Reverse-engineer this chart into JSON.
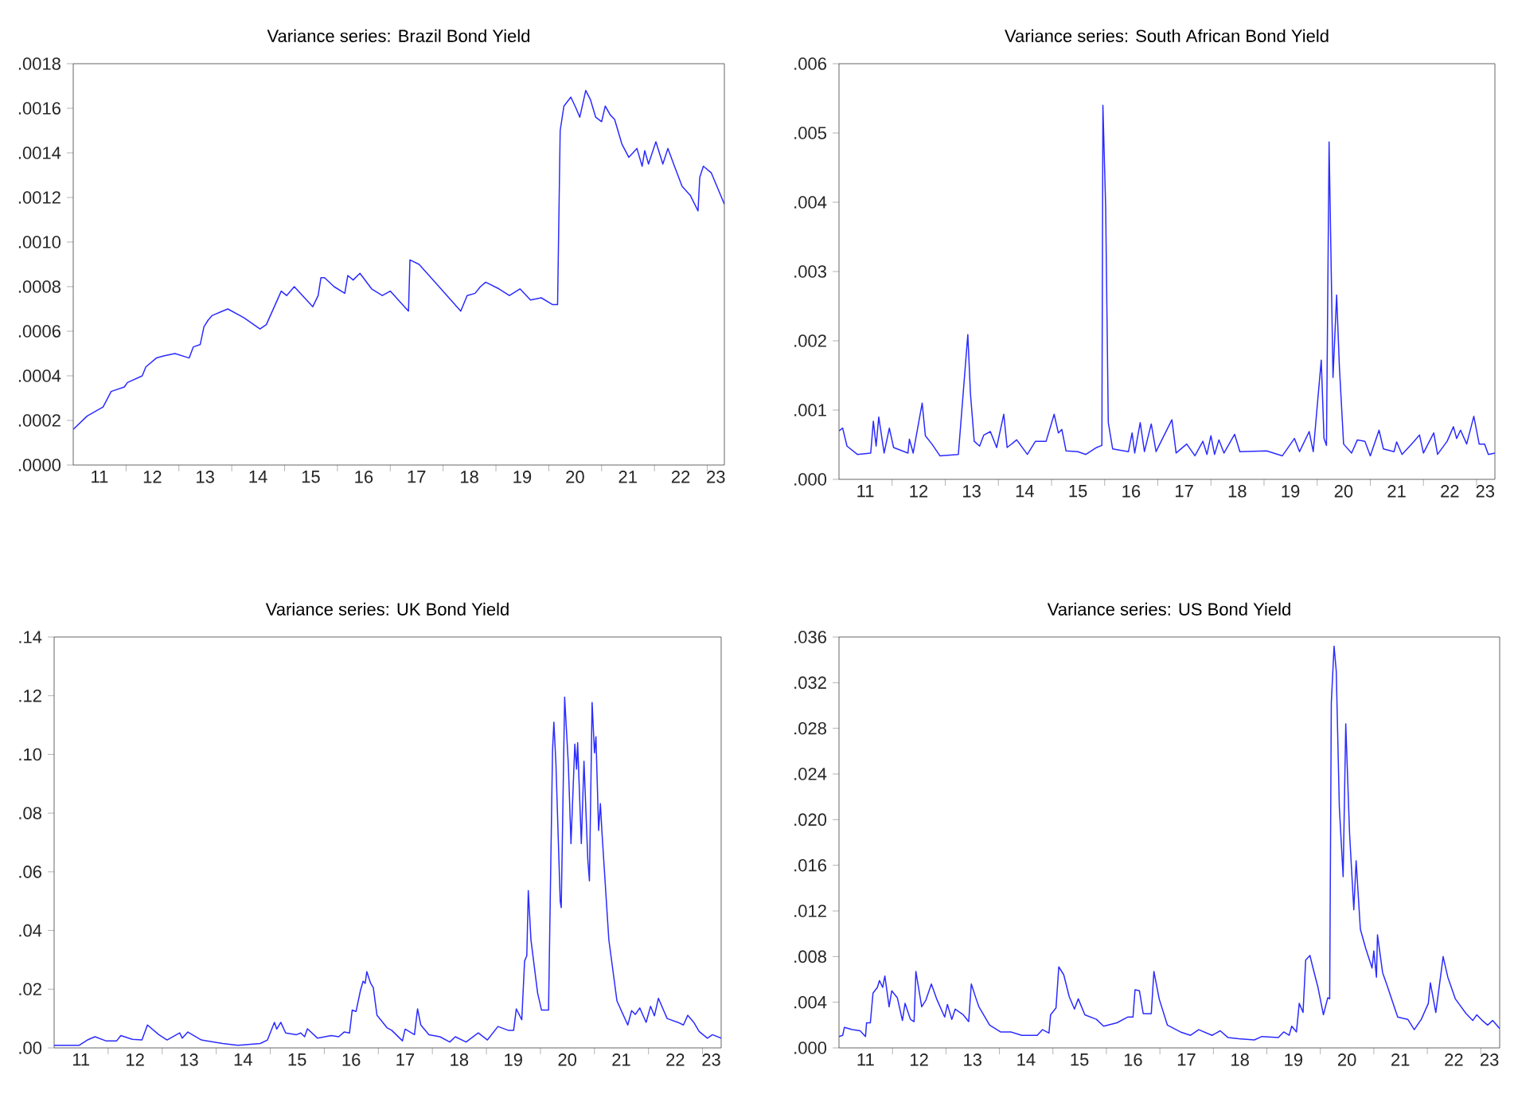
{
  "chart_data": [
    {
      "type": "line",
      "title": "Variance series: Brazil Bond Yield",
      "xlim": [
        "2011-01-01",
        "2023-04-29"
      ],
      "ylim": [
        0,
        0.0018
      ],
      "xticks": [
        {
          "value": "2011-07-01",
          "label": "11"
        },
        {
          "value": "2012-01-01",
          "label": null
        },
        {
          "value": "2012-07-01",
          "label": "12"
        },
        {
          "value": "2013-01-01",
          "label": null
        },
        {
          "value": "2013-07-01",
          "label": "13"
        },
        {
          "value": "2014-01-01",
          "label": null
        },
        {
          "value": "2014-07-01",
          "label": "14"
        },
        {
          "value": "2015-01-01",
          "label": null
        },
        {
          "value": "2015-07-01",
          "label": "15"
        },
        {
          "value": "2016-01-01",
          "label": null
        },
        {
          "value": "2016-07-01",
          "label": "16"
        },
        {
          "value": "2017-01-01",
          "label": null
        },
        {
          "value": "2017-07-01",
          "label": "17"
        },
        {
          "value": "2018-01-01",
          "label": null
        },
        {
          "value": "2018-07-01",
          "label": "18"
        },
        {
          "value": "2019-01-01",
          "label": null
        },
        {
          "value": "2019-07-01",
          "label": "19"
        },
        {
          "value": "2020-01-01",
          "label": null
        },
        {
          "value": "2020-07-01",
          "label": "20"
        },
        {
          "value": "2021-01-01",
          "label": null
        },
        {
          "value": "2021-07-01",
          "label": "21"
        },
        {
          "value": "2022-01-01",
          "label": null
        },
        {
          "value": "2022-07-01",
          "label": "22"
        },
        {
          "value": "2023-01-01",
          "label": null
        },
        {
          "value": "2023-03-01",
          "label": "23"
        }
      ],
      "yticks": [
        {
          "value": 0,
          "label": ".0000"
        },
        {
          "value": 0.0002,
          "label": ".0002"
        },
        {
          "value": 0.0004,
          "label": ".0004"
        },
        {
          "value": 0.0006,
          "label": ".0006"
        },
        {
          "value": 0.0008,
          "label": ".0008"
        },
        {
          "value": 0.001,
          "label": ".0010"
        },
        {
          "value": 0.0012,
          "label": ".0012"
        },
        {
          "value": 0.0014,
          "label": ".0014"
        },
        {
          "value": 0.0016,
          "label": ".0016"
        },
        {
          "value": 0.0018,
          "label": ".0018"
        }
      ],
      "x": [
        "2011-01-01",
        "2011-04-08",
        "2011-07-26",
        "2011-09-20",
        "2011-12-20",
        "2012-01-11",
        "2012-04-22",
        "2012-05-17",
        "2012-07-29",
        "2012-09-23",
        "2012-12-05",
        "2013-03-13",
        "2013-04-11",
        "2013-05-28",
        "2013-06-23",
        "2013-07-22",
        "2013-08-17",
        "2013-10-29",
        "2013-12-05",
        "2014-03-27",
        "2014-07-15",
        "2014-08-28",
        "2014-12-09",
        "2015-01-15",
        "2015-03-09",
        "2015-07-15",
        "2015-08-21",
        "2015-09-09",
        "2015-10-04",
        "2015-12-09",
        "2016-02-21",
        "2016-03-13",
        "2016-04-19",
        "2016-06-05",
        "2016-08-25",
        "2016-11-07",
        "2017-01-01",
        "2017-05-07",
        "2017-05-17",
        "2017-07-19",
        "2017-11-07",
        "2018-05-03",
        "2018-06-16",
        "2018-08-10",
        "2018-09-16",
        "2018-10-22",
        "2019-01-22",
        "2019-04-04",
        "2019-06-16",
        "2019-08-28",
        "2019-11-10",
        "2020-01-26",
        "2020-03-02",
        "2020-03-20",
        "2020-04-15",
        "2020-06-02",
        "2020-07-08",
        "2020-08-03",
        "2020-09-13",
        "2020-10-15",
        "2020-11-21",
        "2021-01-01",
        "2021-01-26",
        "2021-03-02",
        "2021-04-01",
        "2021-05-21",
        "2021-07-08",
        "2021-09-02",
        "2021-10-08",
        "2021-10-26",
        "2021-11-21",
        "2022-01-11",
        "2022-02-28",
        "2022-04-04",
        "2022-05-25",
        "2022-07-11",
        "2022-09-05",
        "2022-10-29",
        "2022-11-10",
        "2022-12-05",
        "2023-01-29",
        "2023-04-29"
      ],
      "series": [
        {
          "color": "#2b2bff",
          "values": [
            0.00016,
            0.00022,
            0.00026,
            0.00033,
            0.00035,
            0.00037,
            0.0004,
            0.00044,
            0.00048,
            0.00049,
            0.0005,
            0.00048,
            0.00053,
            0.00054,
            0.00062,
            0.00065,
            0.00067,
            0.00069,
            0.0007,
            0.00066,
            0.00061,
            0.00063,
            0.00078,
            0.00076,
            0.0008,
            0.00071,
            0.00076,
            0.00084,
            0.00084,
            0.0008,
            0.00077,
            0.00085,
            0.00083,
            0.00086,
            0.00079,
            0.00076,
            0.00078,
            0.00069,
            0.00092,
            0.0009,
            0.00082,
            0.00069,
            0.00076,
            0.00077,
            0.0008,
            0.00082,
            0.00079,
            0.00076,
            0.00079,
            0.00074,
            0.00075,
            0.00072,
            0.00072,
            0.0015,
            0.00161,
            0.00165,
            0.0016,
            0.00156,
            0.00168,
            0.00164,
            0.00156,
            0.00154,
            0.00161,
            0.00157,
            0.00155,
            0.00144,
            0.00138,
            0.00142,
            0.00134,
            0.00141,
            0.00135,
            0.00145,
            0.00135,
            0.00142,
            0.00133,
            0.00125,
            0.00121,
            0.00114,
            0.00129,
            0.00134,
            0.00131,
            0.00117
          ]
        }
      ]
    },
    {
      "type": "line",
      "title": "Variance series: South African Bond Yield",
      "xlim": [
        "2011-01-01",
        "2023-05-07"
      ],
      "ylim": [
        0,
        0.006
      ],
      "xticks": [
        {
          "value": "2011-07-01",
          "label": "11"
        },
        {
          "value": "2012-01-01",
          "label": null
        },
        {
          "value": "2012-07-01",
          "label": "12"
        },
        {
          "value": "2013-01-01",
          "label": null
        },
        {
          "value": "2013-07-01",
          "label": "13"
        },
        {
          "value": "2014-01-01",
          "label": null
        },
        {
          "value": "2014-07-01",
          "label": "14"
        },
        {
          "value": "2015-01-01",
          "label": null
        },
        {
          "value": "2015-07-01",
          "label": "15"
        },
        {
          "value": "2016-01-01",
          "label": null
        },
        {
          "value": "2016-07-01",
          "label": "16"
        },
        {
          "value": "2017-01-01",
          "label": null
        },
        {
          "value": "2017-07-01",
          "label": "17"
        },
        {
          "value": "2018-01-01",
          "label": null
        },
        {
          "value": "2018-07-01",
          "label": "18"
        },
        {
          "value": "2019-01-01",
          "label": null
        },
        {
          "value": "2019-07-01",
          "label": "19"
        },
        {
          "value": "2020-01-01",
          "label": null
        },
        {
          "value": "2020-07-01",
          "label": "20"
        },
        {
          "value": "2021-01-01",
          "label": null
        },
        {
          "value": "2021-07-01",
          "label": "21"
        },
        {
          "value": "2022-01-01",
          "label": null
        },
        {
          "value": "2022-07-01",
          "label": "22"
        },
        {
          "value": "2023-01-01",
          "label": null
        },
        {
          "value": "2023-03-01",
          "label": "23"
        }
      ],
      "yticks": [
        {
          "value": 0,
          "label": ".000"
        },
        {
          "value": 0.001,
          "label": ".001"
        },
        {
          "value": 0.002,
          "label": ".002"
        },
        {
          "value": 0.003,
          "label": ".003"
        },
        {
          "value": 0.004,
          "label": ".004"
        },
        {
          "value": 0.005,
          "label": ".005"
        },
        {
          "value": 0.006,
          "label": ".006"
        }
      ],
      "x": [
        "2011-01-01",
        "2011-01-26",
        "2011-02-25",
        "2011-05-07",
        "2011-08-07",
        "2011-08-25",
        "2011-09-13",
        "2011-10-01",
        "2011-11-07",
        "2011-12-13",
        "2012-01-11",
        "2012-04-19",
        "2012-04-29",
        "2012-05-25",
        "2012-07-26",
        "2012-08-17",
        "2012-10-01",
        "2012-11-25",
        "2013-04-01",
        "2013-06-05",
        "2013-06-23",
        "2013-07-19",
        "2013-08-25",
        "2013-09-23",
        "2013-11-07",
        "2013-12-20",
        "2014-02-07",
        "2014-03-02",
        "2014-05-07",
        "2014-07-19",
        "2014-09-13",
        "2014-11-25",
        "2015-01-19",
        "2015-02-17",
        "2015-03-13",
        "2015-04-11",
        "2015-07-01",
        "2015-08-25",
        "2015-11-07",
        "2015-12-13",
        "2015-12-20",
        "2016-01-08",
        "2016-01-26",
        "2016-02-25",
        "2016-06-13",
        "2016-07-08",
        "2016-07-26",
        "2016-09-02",
        "2016-10-01",
        "2016-11-17",
        "2016-12-20",
        "2017-04-08",
        "2017-05-07",
        "2017-07-19",
        "2017-09-13",
        "2017-11-07",
        "2017-12-05",
        "2018-01-01",
        "2018-01-26",
        "2018-02-25",
        "2018-04-01",
        "2018-06-13",
        "2018-07-19",
        "2019-01-19",
        "2019-05-07",
        "2019-07-29",
        "2019-09-02",
        "2019-11-07",
        "2019-12-05",
        "2020-01-29",
        "2020-02-17",
        "2020-03-05",
        "2020-03-23",
        "2020-04-19",
        "2020-05-14",
        "2020-06-02",
        "2020-07-01",
        "2020-08-25",
        "2020-10-04",
        "2020-11-25",
        "2021-01-01",
        "2021-03-02",
        "2021-04-01",
        "2021-06-13",
        "2021-07-01",
        "2021-08-07",
        "2021-10-25",
        "2021-12-05",
        "2022-01-01",
        "2022-03-13",
        "2022-04-08",
        "2022-06-13",
        "2022-07-26",
        "2022-08-17",
        "2022-09-13",
        "2022-10-25",
        "2022-12-13",
        "2023-01-19",
        "2023-02-25",
        "2023-03-23",
        "2023-05-07"
      ],
      "series": [
        {
          "color": "#2b2bff",
          "values": [
            0.0007,
            0.00074,
            0.00048,
            0.00036,
            0.00038,
            0.00084,
            0.00048,
            0.0009,
            0.00038,
            0.00074,
            0.00046,
            0.00038,
            0.00058,
            0.00038,
            0.0011,
            0.00063,
            0.00051,
            0.00034,
            0.00036,
            0.00209,
            0.00124,
            0.00055,
            0.00048,
            0.00064,
            0.00069,
            0.00046,
            0.00094,
            0.00046,
            0.00057,
            0.00036,
            0.00055,
            0.00055,
            0.00094,
            0.00067,
            0.00072,
            0.00041,
            0.0004,
            0.00036,
            0.00046,
            0.00049,
            0.0054,
            0.00393,
            0.00082,
            0.00044,
            0.0004,
            0.00067,
            0.00038,
            0.00082,
            0.0004,
            0.0008,
            0.0004,
            0.00086,
            0.00038,
            0.00051,
            0.00034,
            0.00055,
            0.00036,
            0.00063,
            0.00036,
            0.00057,
            0.00038,
            0.00065,
            0.0004,
            0.00041,
            0.00034,
            0.00059,
            0.0004,
            0.00069,
            0.0004,
            0.00172,
            0.00059,
            0.00049,
            0.00487,
            0.00147,
            0.00266,
            0.00163,
            0.00051,
            0.00038,
            0.00057,
            0.00055,
            0.00034,
            0.00071,
            0.00044,
            0.0004,
            0.00054,
            0.00036,
            0.00054,
            0.00064,
            0.00038,
            0.00067,
            0.00036,
            0.00055,
            0.00076,
            0.00059,
            0.00071,
            0.00051,
            0.00091,
            0.00051,
            0.00051,
            0.00036,
            0.00038
          ]
        }
      ]
    },
    {
      "type": "line",
      "title": "Variance series: UK Bond Yield",
      "xlim": [
        "2011-01-01",
        "2023-05-07"
      ],
      "ylim": [
        0,
        0.14
      ],
      "xticks": [
        {
          "value": "2011-07-01",
          "label": "11"
        },
        {
          "value": "2012-01-01",
          "label": null
        },
        {
          "value": "2012-07-01",
          "label": "12"
        },
        {
          "value": "2013-01-01",
          "label": null
        },
        {
          "value": "2013-07-01",
          "label": "13"
        },
        {
          "value": "2014-01-01",
          "label": null
        },
        {
          "value": "2014-07-01",
          "label": "14"
        },
        {
          "value": "2015-01-01",
          "label": null
        },
        {
          "value": "2015-07-01",
          "label": "15"
        },
        {
          "value": "2016-01-01",
          "label": null
        },
        {
          "value": "2016-07-01",
          "label": "16"
        },
        {
          "value": "2017-01-01",
          "label": null
        },
        {
          "value": "2017-07-01",
          "label": "17"
        },
        {
          "value": "2018-01-01",
          "label": null
        },
        {
          "value": "2018-07-01",
          "label": "18"
        },
        {
          "value": "2019-01-01",
          "label": null
        },
        {
          "value": "2019-07-01",
          "label": "19"
        },
        {
          "value": "2020-01-01",
          "label": null
        },
        {
          "value": "2020-07-01",
          "label": "20"
        },
        {
          "value": "2021-01-01",
          "label": null
        },
        {
          "value": "2021-07-01",
          "label": "21"
        },
        {
          "value": "2022-01-01",
          "label": null
        },
        {
          "value": "2022-07-01",
          "label": "22"
        },
        {
          "value": "2023-01-01",
          "label": null
        },
        {
          "value": "2023-03-01",
          "label": "23"
        }
      ],
      "yticks": [
        {
          "value": 0,
          "label": ".00"
        },
        {
          "value": 0.02,
          "label": ".02"
        },
        {
          "value": 0.04,
          "label": ".04"
        },
        {
          "value": 0.06,
          "label": ".06"
        },
        {
          "value": 0.08,
          "label": ".08"
        },
        {
          "value": 0.1,
          "label": ".10"
        },
        {
          "value": 0.12,
          "label": ".12"
        },
        {
          "value": 0.14,
          "label": ".14"
        }
      ],
      "x": [
        "2011-01-01",
        "2011-06-20",
        "2011-08-14",
        "2011-10-04",
        "2011-12-16",
        "2012-02-28",
        "2012-03-27",
        "2012-06-13",
        "2012-08-17",
        "2012-09-23",
        "2012-12-09",
        "2013-02-03",
        "2013-04-29",
        "2013-05-17",
        "2013-06-23",
        "2013-09-23",
        "2014-02-14",
        "2014-05-28",
        "2014-10-25",
        "2014-12-13",
        "2015-01-29",
        "2015-02-14",
        "2015-03-13",
        "2015-04-15",
        "2015-06-27",
        "2015-07-26",
        "2015-08-21",
        "2015-09-09",
        "2015-11-17",
        "2016-02-17",
        "2016-04-08",
        "2016-05-14",
        "2016-06-20",
        "2016-07-08",
        "2016-08-03",
        "2016-09-02",
        "2016-09-20",
        "2016-10-04",
        "2016-10-15",
        "2016-11-10",
        "2016-11-28",
        "2016-12-23",
        "2017-02-28",
        "2017-04-01",
        "2017-06-13",
        "2017-07-01",
        "2017-09-02",
        "2017-09-23",
        "2017-10-15",
        "2017-12-09",
        "2018-02-21",
        "2018-04-29",
        "2018-06-05",
        "2018-08-17",
        "2018-11-07",
        "2019-01-08",
        "2019-03-20",
        "2019-05-28",
        "2019-07-04",
        "2019-07-22",
        "2019-08-28",
        "2019-09-16",
        "2019-10-01",
        "2019-10-11",
        "2019-10-29",
        "2019-12-13",
        "2020-01-08",
        "2020-02-25",
        "2020-03-23",
        "2020-04-01",
        "2020-04-15",
        "2020-05-14",
        "2020-05-21",
        "2020-06-13",
        "2020-07-08",
        "2020-07-26",
        "2020-08-21",
        "2020-09-02",
        "2020-09-09",
        "2020-10-04",
        "2020-10-22",
        "2020-11-17",
        "2020-11-28",
        "2020-12-16",
        "2021-01-01",
        "2021-01-11",
        "2021-01-29",
        "2021-02-10",
        "2021-02-21",
        "2021-04-08",
        "2021-06-02",
        "2021-08-14",
        "2021-09-09",
        "2021-10-04",
        "2021-11-03",
        "2021-12-16",
        "2022-01-15",
        "2022-02-10",
        "2022-03-09",
        "2022-05-07",
        "2022-07-19",
        "2022-08-25",
        "2022-09-23",
        "2022-11-03",
        "2022-12-09",
        "2023-02-03",
        "2023-03-09",
        "2023-05-07"
      ],
      "series": [
        {
          "color": "#2b2bff",
          "values": [
            0.0009,
            0.0009,
            0.0027,
            0.0038,
            0.0024,
            0.0024,
            0.0042,
            0.0029,
            0.0027,
            0.0078,
            0.0045,
            0.0027,
            0.0051,
            0.0033,
            0.0054,
            0.0027,
            0.0015,
            0.0009,
            0.0015,
            0.0027,
            0.0087,
            0.0064,
            0.0087,
            0.0051,
            0.0045,
            0.0051,
            0.0038,
            0.0065,
            0.0033,
            0.0042,
            0.0038,
            0.0054,
            0.0051,
            0.0129,
            0.0124,
            0.0196,
            0.0227,
            0.022,
            0.026,
            0.022,
            0.0205,
            0.0111,
            0.0069,
            0.006,
            0.0024,
            0.0064,
            0.0045,
            0.0133,
            0.0078,
            0.0045,
            0.0038,
            0.002,
            0.0038,
            0.002,
            0.0051,
            0.0027,
            0.0073,
            0.006,
            0.006,
            0.0133,
            0.0096,
            0.0296,
            0.0314,
            0.0536,
            0.0368,
            0.0187,
            0.0129,
            0.0129,
            0.1013,
            0.111,
            0.0968,
            0.0499,
            0.0478,
            0.1195,
            0.0968,
            0.0696,
            0.1035,
            0.095,
            0.104,
            0.0696,
            0.0977,
            0.0641,
            0.0569,
            0.1177,
            0.1005,
            0.106,
            0.0741,
            0.0832,
            0.0732,
            0.0369,
            0.016,
            0.0078,
            0.0127,
            0.0114,
            0.0136,
            0.0087,
            0.0142,
            0.0109,
            0.0169,
            0.01,
            0.0087,
            0.0078,
            0.0111,
            0.0087,
            0.0056,
            0.0033,
            0.0045,
            0.0033
          ]
        }
      ]
    },
    {
      "type": "line",
      "title": "Variance series: US Bond Yield",
      "xlim": [
        "2011-01-01",
        "2023-05-10"
      ],
      "ylim": [
        0,
        0.036
      ],
      "xticks": [
        {
          "value": "2011-07-01",
          "label": "11"
        },
        {
          "value": "2012-01-01",
          "label": null
        },
        {
          "value": "2012-07-01",
          "label": "12"
        },
        {
          "value": "2013-01-01",
          "label": null
        },
        {
          "value": "2013-07-01",
          "label": "13"
        },
        {
          "value": "2014-01-01",
          "label": null
        },
        {
          "value": "2014-07-01",
          "label": "14"
        },
        {
          "value": "2015-01-01",
          "label": null
        },
        {
          "value": "2015-07-01",
          "label": "15"
        },
        {
          "value": "2016-01-01",
          "label": null
        },
        {
          "value": "2016-07-01",
          "label": "16"
        },
        {
          "value": "2017-01-01",
          "label": null
        },
        {
          "value": "2017-07-01",
          "label": "17"
        },
        {
          "value": "2018-01-01",
          "label": null
        },
        {
          "value": "2018-07-01",
          "label": "18"
        },
        {
          "value": "2019-01-01",
          "label": null
        },
        {
          "value": "2019-07-01",
          "label": "19"
        },
        {
          "value": "2020-01-01",
          "label": null
        },
        {
          "value": "2020-07-01",
          "label": "20"
        },
        {
          "value": "2021-01-01",
          "label": null
        },
        {
          "value": "2021-07-01",
          "label": "21"
        },
        {
          "value": "2022-01-01",
          "label": null
        },
        {
          "value": "2022-07-01",
          "label": "22"
        },
        {
          "value": "2023-01-01",
          "label": null
        },
        {
          "value": "2023-03-01",
          "label": "23"
        }
      ],
      "yticks": [
        {
          "value": 0,
          "label": ".000"
        },
        {
          "value": 0.004,
          "label": ".004"
        },
        {
          "value": 0.008,
          "label": ".008"
        },
        {
          "value": 0.012,
          "label": ".012"
        },
        {
          "value": 0.016,
          "label": ".016"
        },
        {
          "value": 0.02,
          "label": ".020"
        },
        {
          "value": 0.024,
          "label": ".024"
        },
        {
          "value": 0.028,
          "label": ".028"
        },
        {
          "value": 0.032,
          "label": ".032"
        },
        {
          "value": 0.036,
          "label": ".036"
        }
      ],
      "x": [
        "2011-01-01",
        "2011-01-26",
        "2011-02-07",
        "2011-04-01",
        "2011-05-25",
        "2011-07-01",
        "2011-07-08",
        "2011-08-03",
        "2011-08-21",
        "2011-09-20",
        "2011-10-04",
        "2011-10-26",
        "2011-11-10",
        "2011-12-09",
        "2011-12-27",
        "2012-02-03",
        "2012-03-09",
        "2012-03-27",
        "2012-05-03",
        "2012-05-28",
        "2012-06-09",
        "2012-07-19",
        "2012-08-17",
        "2012-09-23",
        "2012-10-29",
        "2012-12-23",
        "2013-01-11",
        "2013-02-10",
        "2013-03-05",
        "2013-04-29",
        "2013-06-05",
        "2013-06-23",
        "2013-07-26",
        "2013-08-14",
        "2013-10-26",
        "2014-01-08",
        "2014-03-20",
        "2014-06-02",
        "2014-09-16",
        "2014-10-22",
        "2014-12-05",
        "2014-12-16",
        "2015-01-22",
        "2015-02-10",
        "2015-03-16",
        "2015-04-22",
        "2015-05-28",
        "2015-06-23",
        "2015-08-07",
        "2015-10-25",
        "2015-12-13",
        "2016-03-13",
        "2016-05-25",
        "2016-07-01",
        "2016-07-15",
        "2016-08-14",
        "2016-09-09",
        "2016-11-03",
        "2016-11-21",
        "2016-12-27",
        "2017-02-21",
        "2017-05-21",
        "2017-07-29",
        "2017-09-23",
        "2017-12-23",
        "2018-02-17",
        "2018-04-11",
        "2018-06-23",
        "2018-10-08",
        "2018-11-28",
        "2019-03-20",
        "2019-04-26",
        "2019-06-02",
        "2019-06-20",
        "2019-07-22",
        "2019-08-10",
        "2019-09-05",
        "2019-09-23",
        "2019-10-22",
        "2019-11-10",
        "2019-12-16",
        "2020-01-22",
        "2020-02-21",
        "2020-03-05",
        "2020-03-16",
        "2020-04-04",
        "2020-04-19",
        "2020-05-10",
        "2020-06-05",
        "2020-06-23",
        "2020-07-19",
        "2020-08-17",
        "2020-09-02",
        "2020-10-01",
        "2020-11-07",
        "2020-12-20",
        "2021-01-01",
        "2021-01-19",
        "2021-01-26",
        "2021-03-02",
        "2021-04-01",
        "2021-06-13",
        "2021-08-21",
        "2021-10-04",
        "2021-11-21",
        "2022-01-08",
        "2022-01-22",
        "2022-02-28",
        "2022-04-04",
        "2022-04-19",
        "2022-05-21",
        "2022-07-11",
        "2022-09-23",
        "2022-11-07",
        "2022-12-05",
        "2023-01-11",
        "2023-02-17",
        "2023-03-23",
        "2023-05-10"
      ],
      "series": [
        {
          "color": "#2b2bff",
          "values": [
            0.001,
            0.0011,
            0.0018,
            0.0016,
            0.0015,
            0.001,
            0.0022,
            0.0022,
            0.0048,
            0.0053,
            0.0059,
            0.0053,
            0.0063,
            0.0036,
            0.005,
            0.0044,
            0.0024,
            0.0039,
            0.0025,
            0.0023,
            0.0067,
            0.0036,
            0.0042,
            0.0056,
            0.0043,
            0.0027,
            0.0038,
            0.0025,
            0.0034,
            0.0029,
            0.0023,
            0.0056,
            0.0043,
            0.0036,
            0.002,
            0.0014,
            0.0014,
            0.0011,
            0.0011,
            0.0016,
            0.0013,
            0.0029,
            0.0035,
            0.0071,
            0.0064,
            0.0045,
            0.0034,
            0.0043,
            0.0029,
            0.0025,
            0.0019,
            0.0022,
            0.0027,
            0.0027,
            0.0051,
            0.005,
            0.003,
            0.003,
            0.0067,
            0.0043,
            0.002,
            0.0014,
            0.0011,
            0.0016,
            0.0011,
            0.0015,
            0.0009,
            0.0008,
            0.0007,
            0.001,
            0.0009,
            0.0014,
            0.0011,
            0.0019,
            0.0014,
            0.0039,
            0.0031,
            0.0077,
            0.0081,
            0.0071,
            0.0053,
            0.0029,
            0.0044,
            0.0043,
            0.0302,
            0.0352,
            0.033,
            0.0211,
            0.015,
            0.0284,
            0.0188,
            0.0121,
            0.0164,
            0.0104,
            0.0087,
            0.007,
            0.0085,
            0.0062,
            0.0099,
            0.0066,
            0.0055,
            0.0027,
            0.0025,
            0.0016,
            0.0025,
            0.0039,
            0.0057,
            0.0031,
            0.0065,
            0.008,
            0.0062,
            0.0043,
            0.003,
            0.0024,
            0.0029,
            0.0024,
            0.002,
            0.0024,
            0.0017
          ]
        }
      ]
    }
  ]
}
